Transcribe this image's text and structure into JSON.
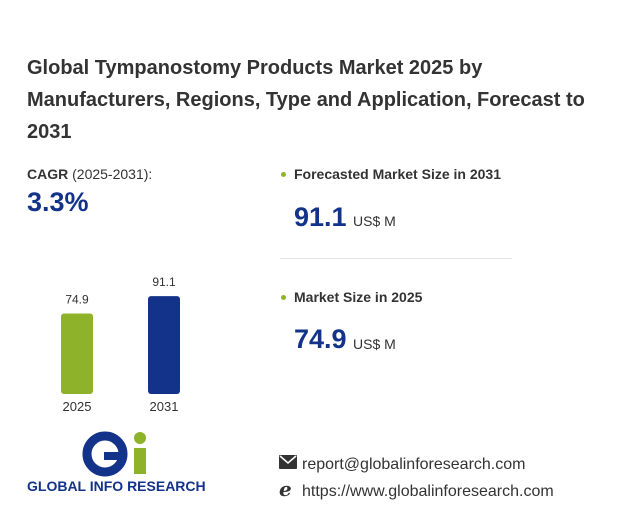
{
  "header": {
    "title": "Global Tympanostomy Products Market 2025 by Manufacturers, Regions, Type and Application, Forecast to 2031"
  },
  "cagr": {
    "label": "CAGR",
    "period": "(2025-2031):",
    "value": "3.3%"
  },
  "stats": [
    {
      "label": "Forecasted Market Size in 2031",
      "unit": "US$ M"
    },
    {
      "label": "Market Size in 2025",
      "unit": "US$ M"
    }
  ],
  "chart_data": {
    "type": "bar",
    "categories": [
      "2025",
      "2031"
    ],
    "values": [
      74.9,
      91.1
    ],
    "colors": [
      "#8fb22b",
      "#13328a"
    ]
  },
  "logo": {
    "name": "GLOBAL INFO RESEARCH"
  },
  "contact": {
    "email": "report@globalinforesearch.com",
    "website": "https://www.globalinforesearch.com"
  }
}
